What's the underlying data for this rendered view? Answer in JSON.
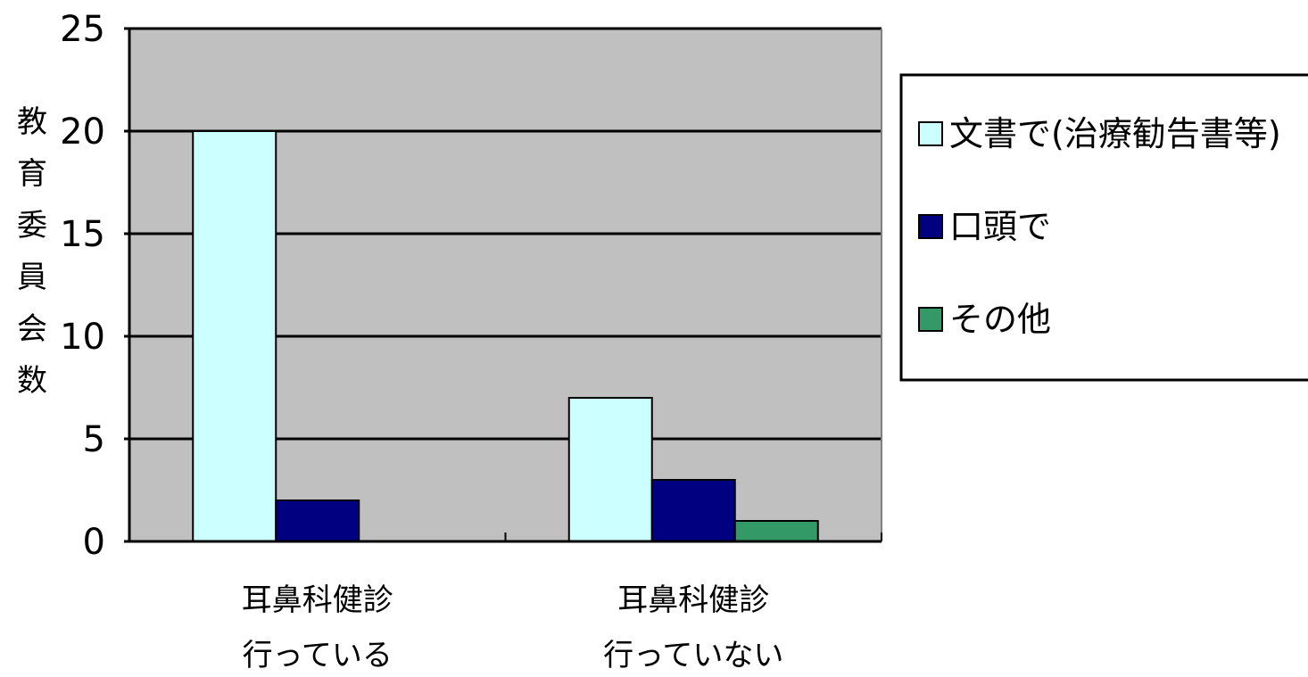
{
  "chart_data": {
    "type": "bar",
    "categories": [
      [
        "耳鼻科健診",
        "行っている"
      ],
      [
        "耳鼻科健診",
        "行っていない"
      ]
    ],
    "series": [
      {
        "name": "文書で(治療勧告書等)",
        "values": [
          20,
          7
        ],
        "color": "#ccffff"
      },
      {
        "name": "口頭で",
        "values": [
          2,
          3
        ],
        "color": "#000080"
      },
      {
        "name": "その他",
        "values": [
          0,
          1
        ],
        "color": "#339966"
      }
    ],
    "ylabel": "教育委員会数",
    "ylim": [
      0,
      25
    ],
    "yticks": [
      0,
      5,
      10,
      15,
      20,
      25
    ],
    "grid": true,
    "plot_background": "#c0c0c0",
    "legend_position": "right"
  }
}
